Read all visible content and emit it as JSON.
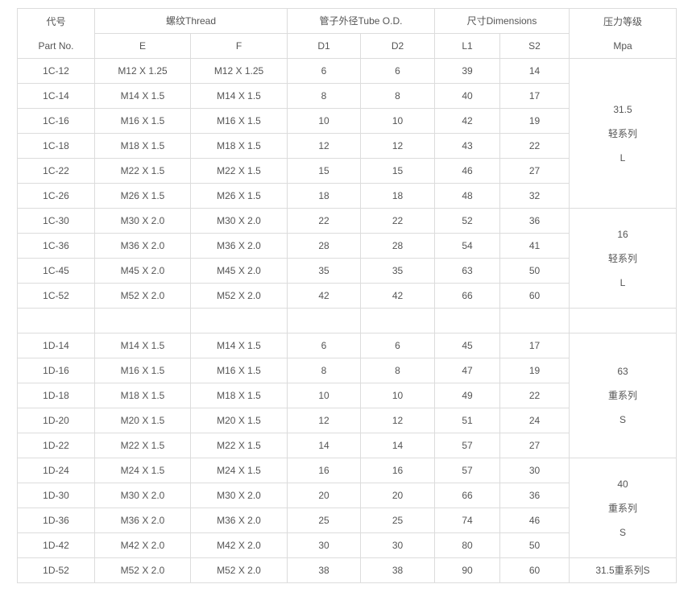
{
  "header": {
    "part_cn": "代号",
    "part_en": "Part No.",
    "thread": "螺纹Thread",
    "tube": "管子外径Tube O.D.",
    "dims": "尺寸Dimensions",
    "pressure_cn": "压力等级",
    "pressure_unit": "Mpa",
    "cols": [
      "E",
      "F",
      "D1",
      "D2",
      "L1",
      "S2"
    ]
  },
  "rows": [
    [
      "1C-12",
      "M12 X 1.25",
      "M12 X 1.25",
      "6",
      "6",
      "39",
      "14"
    ],
    [
      "1C-14",
      "M14 X 1.5",
      "M14 X 1.5",
      "8",
      "8",
      "40",
      "17"
    ],
    [
      "1C-16",
      "M16 X 1.5",
      "M16 X 1.5",
      "10",
      "10",
      "42",
      "19"
    ],
    [
      "1C-18",
      "M18 X 1.5",
      "M18 X 1.5",
      "12",
      "12",
      "43",
      "22"
    ],
    [
      "1C-22",
      "M22 X 1.5",
      "M22 X 1.5",
      "15",
      "15",
      "46",
      "27"
    ],
    [
      "1C-26",
      "M26 X 1.5",
      "M26 X 1.5",
      "18",
      "18",
      "48",
      "32"
    ],
    [
      "1C-30",
      "M30 X 2.0",
      "M30 X 2.0",
      "22",
      "22",
      "52",
      "36"
    ],
    [
      "1C-36",
      "M36 X 2.0",
      "M36 X 2.0",
      "28",
      "28",
      "54",
      "41"
    ],
    [
      "1C-45",
      "M45 X 2.0",
      "M45 X 2.0",
      "35",
      "35",
      "63",
      "50"
    ],
    [
      "1C-52",
      "M52 X 2.0",
      "M52 X 2.0",
      "42",
      "42",
      "66",
      "60"
    ],
    [
      "",
      "",
      "",
      "",
      "",
      "",
      ""
    ],
    [
      "1D-14",
      "M14 X 1.5",
      "M14 X 1.5",
      "6",
      "6",
      "45",
      "17"
    ],
    [
      "1D-16",
      "M16 X 1.5",
      "M16 X 1.5",
      "8",
      "8",
      "47",
      "19"
    ],
    [
      "1D-18",
      "M18 X 1.5",
      "M18 X 1.5",
      "10",
      "10",
      "49",
      "22"
    ],
    [
      "1D-20",
      "M20 X 1.5",
      "M20 X 1.5",
      "12",
      "12",
      "51",
      "24"
    ],
    [
      "1D-22",
      "M22 X 1.5",
      "M22 X 1.5",
      "14",
      "14",
      "57",
      "27"
    ],
    [
      "1D-24",
      "M24 X 1.5",
      "M24 X 1.5",
      "16",
      "16",
      "57",
      "30"
    ],
    [
      "1D-30",
      "M30 X 2.0",
      "M30 X 2.0",
      "20",
      "20",
      "66",
      "36"
    ],
    [
      "1D-36",
      "M36 X 2.0",
      "M36 X 2.0",
      "25",
      "25",
      "74",
      "46"
    ],
    [
      "1D-42",
      "M42 X 2.0",
      "M42 X 2.0",
      "30",
      "30",
      "80",
      "50"
    ],
    [
      "1D-52",
      "M52 X 2.0",
      "M52 X 2.0",
      "38",
      "38",
      "90",
      "60"
    ]
  ],
  "pressure_groups": [
    {
      "start": 0,
      "span": 6,
      "lines": [
        "31.5",
        "轻系列",
        "L"
      ]
    },
    {
      "start": 6,
      "span": 4,
      "lines": [
        "16",
        "轻系列",
        "L"
      ]
    },
    {
      "start": 10,
      "span": 1,
      "lines": [
        ""
      ]
    },
    {
      "start": 11,
      "span": 5,
      "lines": [
        "63",
        "重系列",
        "S"
      ]
    },
    {
      "start": 16,
      "span": 4,
      "lines": [
        "40",
        "重系列",
        "S"
      ]
    },
    {
      "start": 20,
      "span": 1,
      "lines": [
        "31.5重系列S"
      ]
    }
  ]
}
